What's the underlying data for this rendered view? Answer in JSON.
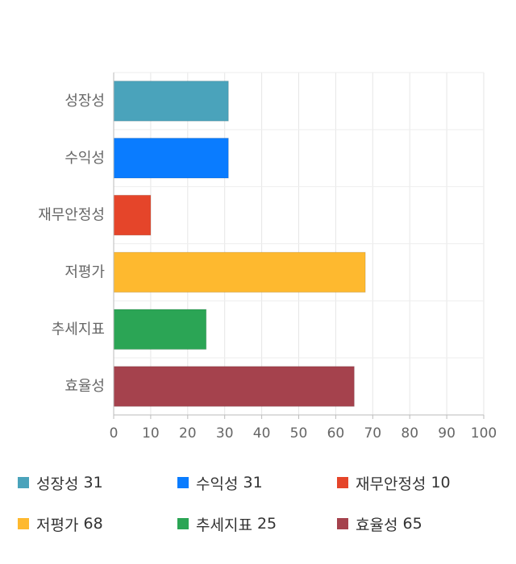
{
  "chart_data": {
    "type": "bar",
    "orientation": "horizontal",
    "categories": [
      "성장성",
      "수익성",
      "재무안정성",
      "저평가",
      "추세지표",
      "효율성"
    ],
    "values": [
      31,
      31,
      10,
      68,
      25,
      65
    ],
    "colors": [
      "#4aa3bb",
      "#0a7cff",
      "#e5452a",
      "#feb92f",
      "#2ba555",
      "#a5424d"
    ],
    "xlim": [
      0,
      100
    ],
    "xticks": [
      "0",
      "10",
      "20",
      "30",
      "40",
      "50",
      "60",
      "70",
      "80",
      "90",
      "100"
    ],
    "grid": true,
    "legend_position": "bottom"
  },
  "legend": [
    {
      "label": "성장성",
      "value": "31"
    },
    {
      "label": "수익성",
      "value": "31"
    },
    {
      "label": "재무안정성",
      "value": "10"
    },
    {
      "label": "저평가",
      "value": "68"
    },
    {
      "label": "추세지표",
      "value": "25"
    },
    {
      "label": "효율성",
      "value": "65"
    }
  ]
}
